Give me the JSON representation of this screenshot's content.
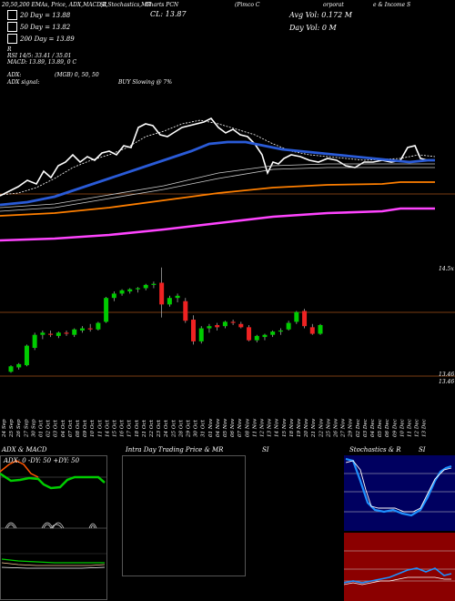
{
  "header": {
    "line1": "20,50,200 EMAs, Price, ADX,MACD,R",
    "ema20": "20 Day = 13.88",
    "ema50": "50 Day = 13.82",
    "ema200": "200 Day = 13.89",
    "rsi": "RSI 14/5: 33.41 / 35.01",
    "macd": "MACD: 13.89, 13.89, 0 C",
    "adx": "ADX:",
    "adx_signal": "ADX signal:",
    "mgb": "(MGB) 0, 50, 50",
    "buy_slowing": "BUY Slowing @ 7%",
    "rsi_label": "R",
    "rs_label": "RS",
    "stoch_title": "SI,Stochastics,MR",
    "symbol_label": "Charts PCN",
    "price_label": "CL: 13.87",
    "company_part1": "(Pimco C",
    "company_part2": "orporat",
    "company_part3": "e & Income S",
    "avg_vol": "Avg Vol: 0.172  M",
    "day_vol": "Day Vol: 0   M"
  },
  "panels": {
    "adx_title": "ADX  & MACD",
    "adx_values": "ADX: 0   -DY: 50   +DY: 50",
    "intraday_title": "Intra  Day Trading Price  & MR",
    "intraday_si": "SI",
    "stoch_title": "Stochastics & R",
    "stoch_si": "SI"
  },
  "colors": {
    "ema_close": "#ffffff",
    "ema20": "#2a5bd7",
    "ema50": "#ff7f00",
    "ema200": "#ff44ff",
    "candle_up": "#00cc00",
    "candle_down": "#ee2222",
    "macd_line": "#00cc00",
    "adx_minus": "#ff5500",
    "adx_plus": "#00cc00"
  },
  "chart_data": {
    "type": "candlestick",
    "x": [
      "24 Sep",
      "25 Sep",
      "26 Sep",
      "27 Sep",
      "30 Sep",
      "01 Oct",
      "02 Oct",
      "03 Oct",
      "04 Oct",
      "07 Oct",
      "08 Oct",
      "09 Oct",
      "10 Oct",
      "11 Oct",
      "14 Oct",
      "15 Oct",
      "16 Oct",
      "17 Oct",
      "18 Oct",
      "21 Oct",
      "22 Oct",
      "23 Oct",
      "24 Oct",
      "25 Oct",
      "28 Oct",
      "29 Oct",
      "30 Oct",
      "31 Oct",
      "01 Nov",
      "04 Nov",
      "05 Nov",
      "06 Nov",
      "07 Nov",
      "08 Nov",
      "11 Nov",
      "12 Nov",
      "13 Nov",
      "14 Nov",
      "15 Nov",
      "18 Nov",
      "19 Nov",
      "20 Nov",
      "21 Nov",
      "22 Nov",
      "25 Nov",
      "26 Nov",
      "27 Nov",
      "29 Nov",
      "02 Dec",
      "03 Dec",
      "04 Dec",
      "05 Dec",
      "06 Dec",
      "09 Dec",
      "10 Dec",
      "11 Dec",
      "12 Dec",
      "13 Dec"
    ],
    "price_labels": {
      "upper": "14.5x",
      "lower": "13.46"
    },
    "price_levels": {
      "top": 14.45,
      "lower": 13.46
    },
    "right_labels": [
      "13.46",
      "13.46"
    ]
  }
}
